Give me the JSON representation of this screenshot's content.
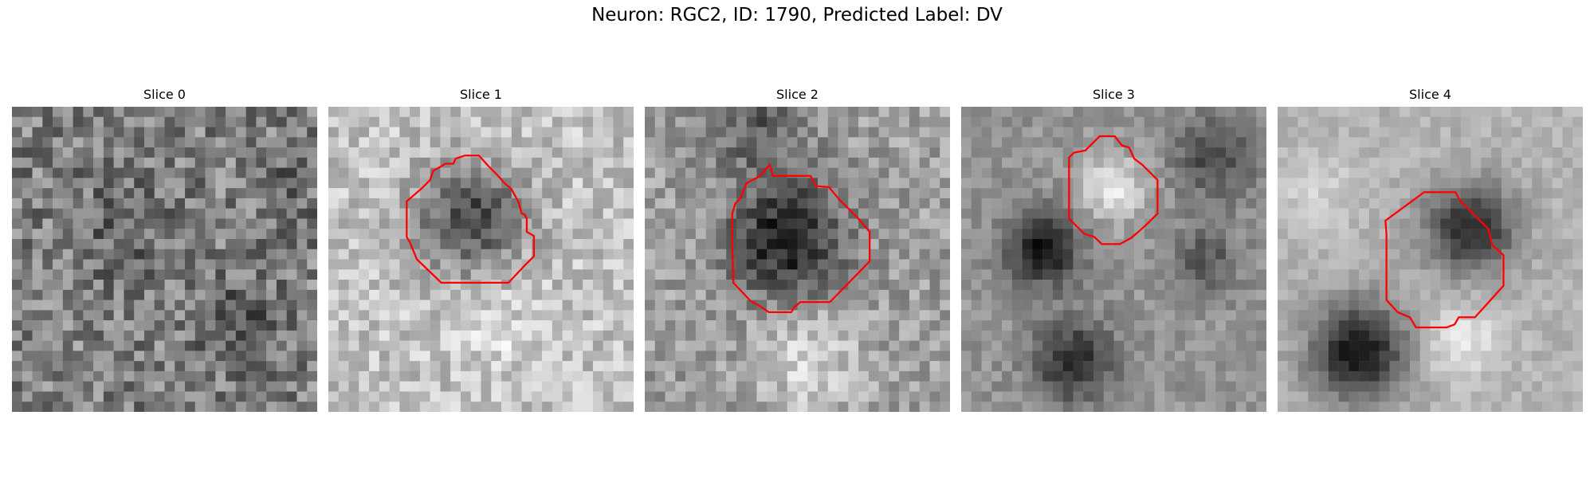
{
  "figure": {
    "title": "Neuron: RGC2, ID: 1790, Predicted Label: DV",
    "contour_color": "#ff0000",
    "colormap": "grayscale",
    "panels": [
      {
        "title": "Slice 0",
        "has_contour": false
      },
      {
        "title": "Slice 1",
        "has_contour": true
      },
      {
        "title": "Slice 2",
        "has_contour": true
      },
      {
        "title": "Slice 3",
        "has_contour": true
      },
      {
        "title": "Slice 4",
        "has_contour": true
      }
    ]
  }
}
